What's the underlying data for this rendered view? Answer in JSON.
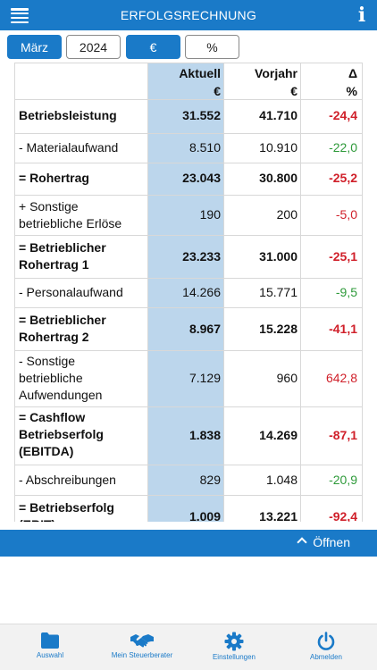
{
  "header": {
    "title": "ERFOLGSRECHNUNG",
    "menu_icon": "hamburger-menu-icon",
    "info_icon": "info-icon"
  },
  "controls": {
    "month": "März",
    "year": "2024",
    "currency": "€",
    "percent": "%"
  },
  "table": {
    "columns": [
      {
        "name": "Aktuell",
        "unit": "€"
      },
      {
        "name": "Vorjahr",
        "unit": "€"
      },
      {
        "name": "Δ",
        "unit": "%"
      }
    ],
    "rows": [
      {
        "label": "Betriebsleistung",
        "aktuell": "31.552",
        "vorjahr": "41.710",
        "delta": "-24,4"
      },
      {
        "label": "- Materialaufwand",
        "aktuell": "8.510",
        "vorjahr": "10.910",
        "delta": "-22,0"
      },
      {
        "label": "= Rohertrag",
        "aktuell": "23.043",
        "vorjahr": "30.800",
        "delta": "-25,2"
      },
      {
        "label": "+ Sonstige betriebliche Erlöse",
        "aktuell": "190",
        "vorjahr": "200",
        "delta": "-5,0"
      },
      {
        "label": "= Betrieblicher Rohertrag 1",
        "aktuell": "23.233",
        "vorjahr": "31.000",
        "delta": "-25,1"
      },
      {
        "label": "- Personalaufwand",
        "aktuell": "14.266",
        "vorjahr": "15.771",
        "delta": "-9,5"
      },
      {
        "label": "= Betrieblicher Rohertrag 2",
        "aktuell": "8.967",
        "vorjahr": "15.228",
        "delta": "-41,1"
      },
      {
        "label": "- Sonstige betriebliche Aufwendungen",
        "aktuell": "7.129",
        "vorjahr": "960",
        "delta": "642,8"
      },
      {
        "label": "= Cashflow Betriebserfolg (EBITDA)",
        "aktuell": "1.838",
        "vorjahr": "14.269",
        "delta": "-87,1"
      },
      {
        "label": "- Abschreibungen",
        "aktuell": "829",
        "vorjahr": "1.048",
        "delta": "-20,9"
      },
      {
        "label": "= Betriebserfolg (EBIT)",
        "aktuell": "1.009",
        "vorjahr": "13.221",
        "delta": "-92,4"
      }
    ]
  },
  "open_bar": {
    "label": "Öffnen"
  },
  "bottom_nav": [
    {
      "label": "Auswahl",
      "icon": "folder-icon"
    },
    {
      "label": "Mein Steuerberater",
      "icon": "handshake-icon"
    },
    {
      "label": "Einstellungen",
      "icon": "gear-icon"
    },
    {
      "label": "Abmelden",
      "icon": "power-icon"
    }
  ],
  "colors": {
    "accent": "#1a7ac8",
    "highlight_column": "#bcd6ec",
    "negative": "#d0202a",
    "positive": "#2e9a3a"
  }
}
